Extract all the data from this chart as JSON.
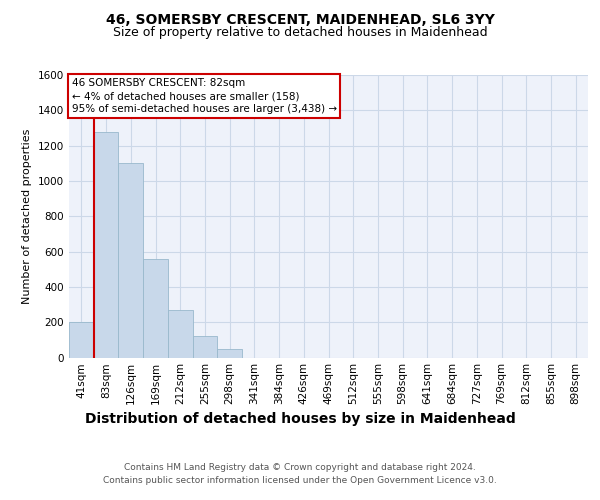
{
  "title": "46, SOMERSBY CRESCENT, MAIDENHEAD, SL6 3YY",
  "subtitle": "Size of property relative to detached houses in Maidenhead",
  "xlabel": "Distribution of detached houses by size in Maidenhead",
  "ylabel": "Number of detached properties",
  "bar_labels": [
    "41sqm",
    "83sqm",
    "126sqm",
    "169sqm",
    "212sqm",
    "255sqm",
    "298sqm",
    "341sqm",
    "384sqm",
    "426sqm",
    "469sqm",
    "512sqm",
    "555sqm",
    "598sqm",
    "641sqm",
    "684sqm",
    "727sqm",
    "769sqm",
    "812sqm",
    "855sqm",
    "898sqm"
  ],
  "bar_values": [
    200,
    1280,
    1100,
    560,
    270,
    120,
    50,
    0,
    0,
    0,
    0,
    0,
    0,
    0,
    0,
    0,
    0,
    0,
    0,
    0,
    0
  ],
  "bar_color": "#c8d8ea",
  "bar_edge_color": "#99b8cc",
  "grid_color": "#ccd8e8",
  "background_color": "#eef2fa",
  "ylim": [
    0,
    1600
  ],
  "yticks": [
    0,
    200,
    400,
    600,
    800,
    1000,
    1200,
    1400,
    1600
  ],
  "property_line_color": "#cc0000",
  "annotation_line1": "46 SOMERSBY CRESCENT: 82sqm",
  "annotation_line2": "← 4% of detached houses are smaller (158)",
  "annotation_line3": "95% of semi-detached houses are larger (3,438) →",
  "annotation_box_color": "#cc0000",
  "footer_line1": "Contains HM Land Registry data © Crown copyright and database right 2024.",
  "footer_line2": "Contains public sector information licensed under the Open Government Licence v3.0.",
  "title_fontsize": 10,
  "subtitle_fontsize": 9,
  "xlabel_fontsize": 10,
  "ylabel_fontsize": 8,
  "tick_fontsize": 7.5,
  "annotation_fontsize": 7.5,
  "footer_fontsize": 6.5
}
